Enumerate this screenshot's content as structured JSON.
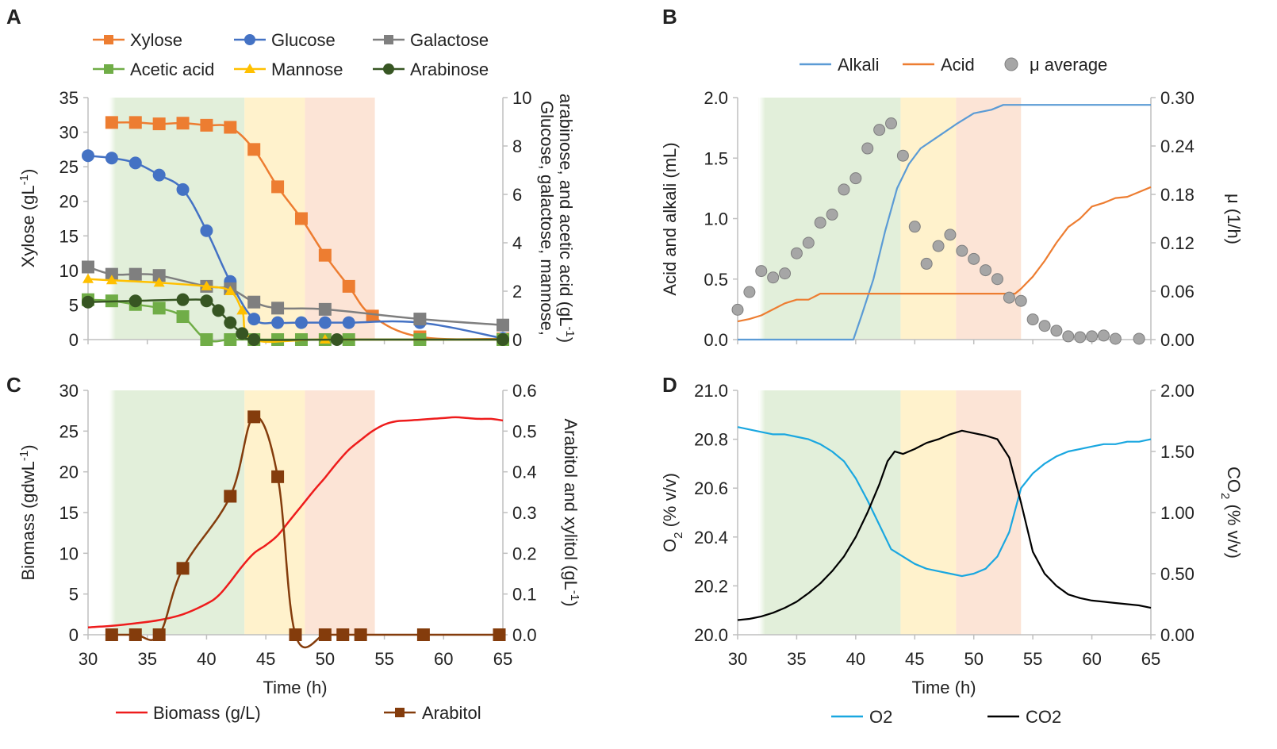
{
  "colors": {
    "xylose": "#ED7D31",
    "glucose": "#4472C4",
    "galactose": "#7F7F7F",
    "acetic": "#70AD47",
    "mannose": "#FFC000",
    "arabinose": "#375623",
    "biomass": "#EE1C1C",
    "arabitol": "#843C0C",
    "alkali": "#5B9BD5",
    "acid": "#ED7D31",
    "mu": "#A6A6A6",
    "o2": "#1AA7E0",
    "co2": "#000000",
    "phase_green": "#E2EFDA",
    "phase_yellow": "#FFF2CC",
    "phase_orange": "#FCE4D6",
    "axis": "#BFBFBF"
  },
  "chart_data": [
    {
      "panel": "A",
      "type": "line",
      "xlabel": "",
      "ylabel": "Xylose (gL-1)",
      "ylabel_parts": [
        "Xylose (gL",
        "-1",
        ")"
      ],
      "y2label_line1": "Glucose, galactose, mannose,",
      "y2label_line2_parts": [
        "arabinose, and acetic acid (gL",
        "-1",
        ")"
      ],
      "xlim": [
        30,
        65
      ],
      "ylim": [
        0,
        35
      ],
      "y2lim": [
        0,
        10
      ],
      "yticks": [
        "0",
        "5",
        "10",
        "15",
        "20",
        "25",
        "30",
        "35"
      ],
      "y2ticks": [
        "0",
        "2",
        "4",
        "6",
        "8",
        "10"
      ],
      "phases": [
        [
          31.8,
          43.2
        ],
        [
          43.2,
          48.3
        ],
        [
          48.3,
          54.2
        ]
      ],
      "legend": [
        "Xylose",
        "Glucose",
        "Galactose",
        "Acetic acid",
        "Mannose",
        "Arabinose"
      ],
      "series": [
        {
          "name": "Xylose",
          "axis": "left",
          "marker": "square",
          "x": [
            32,
            34,
            36,
            38,
            40,
            42,
            44,
            46,
            48,
            50,
            52,
            54,
            58,
            65
          ],
          "y": [
            31.4,
            31.4,
            31.2,
            31.3,
            31.0,
            30.7,
            27.5,
            22.1,
            17.5,
            12.2,
            7.7,
            3.4,
            0.4,
            0.1
          ]
        },
        {
          "name": "Glucose",
          "axis": "left2",
          "marker": "circle",
          "x": [
            30,
            32,
            34,
            36,
            38,
            40,
            42,
            44,
            46,
            48,
            50,
            52,
            58,
            65
          ],
          "y": [
            7.6,
            7.5,
            7.3,
            6.8,
            6.2,
            4.5,
            2.4,
            0.85,
            0.7,
            0.7,
            0.7,
            0.7,
            0.7,
            0.05
          ]
        },
        {
          "name": "Galactose",
          "axis": "right",
          "marker": "square",
          "x": [
            30,
            32,
            34,
            36,
            40,
            42,
            44,
            46,
            50,
            58,
            65
          ],
          "y": [
            3.0,
            2.7,
            2.7,
            2.65,
            2.2,
            2.1,
            1.55,
            1.3,
            1.25,
            0.85,
            0.6
          ]
        },
        {
          "name": "Acetic acid",
          "axis": "right",
          "marker": "square",
          "x": [
            30,
            32,
            34,
            36,
            38,
            40,
            42,
            44,
            46,
            48,
            50,
            52,
            58,
            65
          ],
          "y": [
            1.65,
            1.6,
            1.45,
            1.3,
            0.95,
            0,
            0,
            0,
            0,
            0,
            0,
            0,
            0,
            0
          ]
        },
        {
          "name": "Mannose",
          "axis": "right",
          "marker": "triangle",
          "x": [
            30,
            32,
            36,
            40,
            42,
            43,
            44,
            50,
            65
          ],
          "y": [
            2.5,
            2.45,
            2.35,
            2.2,
            2.0,
            1.2,
            0,
            0,
            0
          ]
        },
        {
          "name": "Arabinose",
          "axis": "right",
          "marker": "circle",
          "x": [
            30,
            34,
            38,
            40,
            41,
            42,
            43,
            44,
            51,
            65
          ],
          "y": [
            1.55,
            1.6,
            1.65,
            1.6,
            1.2,
            0.7,
            0.25,
            0,
            0,
            0
          ]
        }
      ]
    },
    {
      "panel": "B",
      "type": "line",
      "xlabel": "",
      "ylabel": "Acid and alkali (mL)",
      "y2label": "μ (1/h)",
      "xlim": [
        30,
        65
      ],
      "ylim": [
        0,
        2.0
      ],
      "y2lim": [
        0,
        0.3
      ],
      "yticks": [
        "0.0",
        "0.5",
        "1.0",
        "1.5",
        "2.0"
      ],
      "y2ticks": [
        "0.00",
        "0.06",
        "0.12",
        "0.18",
        "0.24",
        "0.30"
      ],
      "phases": [
        [
          31.8,
          43.8
        ],
        [
          43.8,
          48.5
        ],
        [
          48.5,
          54.0
        ]
      ],
      "legend": [
        "Alkali",
        "Acid",
        "μ average"
      ],
      "series": [
        {
          "name": "Alkali",
          "axis": "left",
          "x": [
            30,
            39.8,
            40.5,
            41.5,
            42.5,
            43.5,
            44.5,
            45.5,
            47,
            48.5,
            50,
            51.5,
            52.5,
            65
          ],
          "y": [
            0,
            0,
            0.2,
            0.5,
            0.9,
            1.25,
            1.45,
            1.58,
            1.68,
            1.78,
            1.87,
            1.9,
            1.94,
            1.94
          ]
        },
        {
          "name": "Acid",
          "axis": "left",
          "x": [
            30,
            31,
            32,
            33,
            34,
            35,
            36,
            37,
            38,
            40,
            45,
            50,
            53.5,
            54,
            55,
            56,
            57,
            58,
            59,
            60,
            61,
            62,
            63,
            64,
            65
          ],
          "y": [
            0.15,
            0.17,
            0.2,
            0.25,
            0.3,
            0.33,
            0.33,
            0.38,
            0.38,
            0.38,
            0.38,
            0.38,
            0.38,
            0.42,
            0.52,
            0.65,
            0.8,
            0.93,
            1.0,
            1.1,
            1.13,
            1.17,
            1.18,
            1.22,
            1.26
          ]
        },
        {
          "name": "μ average",
          "axis": "right",
          "marker": "circle",
          "x": [
            30,
            31,
            32,
            33,
            34,
            35,
            36,
            37,
            38,
            39,
            40,
            41,
            42,
            43,
            44,
            45,
            46,
            47,
            48,
            49,
            50,
            51,
            52,
            53,
            54,
            55,
            56,
            57,
            58,
            59,
            60,
            61,
            62,
            64
          ],
          "y": [
            0.037,
            0.059,
            0.085,
            0.077,
            0.082,
            0.107,
            0.12,
            0.145,
            0.155,
            0.186,
            0.2,
            0.237,
            0.26,
            0.268,
            0.228,
            0.14,
            0.094,
            0.116,
            0.13,
            0.11,
            0.1,
            0.086,
            0.075,
            0.052,
            0.048,
            0.025,
            0.017,
            0.011,
            0.004,
            0.003,
            0.004,
            0.005,
            0.001,
            0.001
          ]
        }
      ]
    },
    {
      "panel": "C",
      "type": "line",
      "xlabel": "Time (h)",
      "ylabel": "Biomass (gdwL-1)",
      "ylabel_parts": [
        "Biomass (gdwL",
        "-1",
        ")"
      ],
      "y2label": "Arabitol and xylitol (gL-1)",
      "y2label_parts": [
        "Arabitol and xylitol (gL",
        "-1",
        ")"
      ],
      "xlim": [
        30,
        65
      ],
      "ylim": [
        0,
        30
      ],
      "y2lim": [
        0,
        0.6
      ],
      "xticks": [
        "30",
        "35",
        "40",
        "45",
        "50",
        "55",
        "60",
        "65"
      ],
      "yticks": [
        "0",
        "5",
        "10",
        "15",
        "20",
        "25",
        "30"
      ],
      "y2ticks": [
        "0.0",
        "0.1",
        "0.2",
        "0.3",
        "0.4",
        "0.5",
        "0.6"
      ],
      "phases": [
        [
          31.8,
          43.2
        ],
        [
          43.2,
          48.3
        ],
        [
          48.3,
          54.2
        ]
      ],
      "legend": [
        "Biomass (g/L)",
        "Arabitol"
      ],
      "series": [
        {
          "name": "Biomass (g/L)",
          "axis": "left",
          "x": [
            30,
            32,
            34,
            36,
            38,
            40,
            41,
            42,
            43,
            44,
            45,
            46,
            47,
            48,
            49,
            50,
            51,
            52,
            53,
            54,
            55,
            56,
            57,
            58,
            59,
            60,
            61,
            62,
            63,
            64,
            65
          ],
          "y": [
            0.9,
            1.1,
            1.4,
            1.8,
            2.5,
            3.8,
            4.8,
            6.5,
            8.4,
            10.0,
            11.0,
            12.2,
            14.0,
            15.8,
            17.6,
            19.3,
            21.1,
            22.7,
            23.9,
            25.0,
            25.8,
            26.2,
            26.3,
            26.4,
            26.5,
            26.6,
            26.7,
            26.6,
            26.5,
            26.5,
            26.3
          ]
        },
        {
          "name": "Arabitol",
          "axis": "right",
          "marker": "square",
          "x": [
            32,
            34,
            36,
            38,
            42,
            44,
            46,
            47.5,
            50,
            51.5,
            53,
            58.3,
            64.7
          ],
          "y": [
            0,
            0,
            0,
            0.163,
            0.34,
            0.535,
            0.388,
            0,
            0,
            0,
            0,
            0,
            0
          ]
        }
      ]
    },
    {
      "panel": "D",
      "type": "line",
      "xlabel": "Time (h)",
      "ylabel": "O2 (% v/v)",
      "ylabel_parts": [
        "O",
        "2",
        " (% v/v)"
      ],
      "y2label": "CO2 (% v/v)",
      "y2label_parts": [
        "CO",
        "2",
        " (% v/v)"
      ],
      "xlim": [
        30,
        65
      ],
      "ylim": [
        20.0,
        21.0
      ],
      "y2lim": [
        0,
        2.0
      ],
      "xticks": [
        "30",
        "35",
        "40",
        "45",
        "50",
        "55",
        "60",
        "65"
      ],
      "yticks": [
        "20.0",
        "20.2",
        "20.4",
        "20.6",
        "20.8",
        "21.0"
      ],
      "y2ticks": [
        "0.00",
        "0.50",
        "1.00",
        "1.50",
        "2.00"
      ],
      "phases": [
        [
          31.8,
          43.8
        ],
        [
          43.8,
          48.5
        ],
        [
          48.5,
          54.0
        ]
      ],
      "legend": [
        "O2",
        "CO2"
      ],
      "series": [
        {
          "name": "O2",
          "axis": "left",
          "x": [
            30,
            31,
            32,
            33,
            34,
            35,
            36,
            37,
            38,
            39,
            40,
            41,
            42,
            43,
            44,
            45,
            46,
            47,
            48,
            49,
            50,
            51,
            52,
            53,
            54,
            55,
            56,
            57,
            58,
            59,
            60,
            61,
            62,
            63,
            64,
            65
          ],
          "y": [
            20.85,
            20.84,
            20.83,
            20.82,
            20.82,
            20.81,
            20.8,
            20.78,
            20.75,
            20.71,
            20.64,
            20.55,
            20.45,
            20.35,
            20.32,
            20.29,
            20.27,
            20.26,
            20.25,
            20.24,
            20.25,
            20.27,
            20.32,
            20.42,
            20.6,
            20.66,
            20.7,
            20.73,
            20.75,
            20.76,
            20.77,
            20.78,
            20.78,
            20.79,
            20.79,
            20.8
          ]
        },
        {
          "name": "CO2",
          "axis": "right",
          "x": [
            30,
            31,
            32,
            33,
            34,
            35,
            36,
            37,
            38,
            39,
            40,
            41,
            42,
            42.7,
            43.3,
            44,
            45,
            46,
            47,
            48,
            49,
            50,
            51,
            52,
            53,
            54,
            55,
            56,
            57,
            58,
            59,
            60,
            61,
            62,
            63,
            64,
            65
          ],
          "y": [
            0.12,
            0.13,
            0.15,
            0.18,
            0.22,
            0.27,
            0.34,
            0.42,
            0.52,
            0.64,
            0.8,
            1.0,
            1.23,
            1.42,
            1.5,
            1.48,
            1.52,
            1.57,
            1.6,
            1.64,
            1.67,
            1.65,
            1.63,
            1.6,
            1.45,
            1.08,
            0.68,
            0.5,
            0.4,
            0.33,
            0.3,
            0.28,
            0.27,
            0.26,
            0.25,
            0.24,
            0.22
          ]
        }
      ]
    }
  ],
  "panel_letters": [
    "A",
    "B",
    "C",
    "D"
  ]
}
